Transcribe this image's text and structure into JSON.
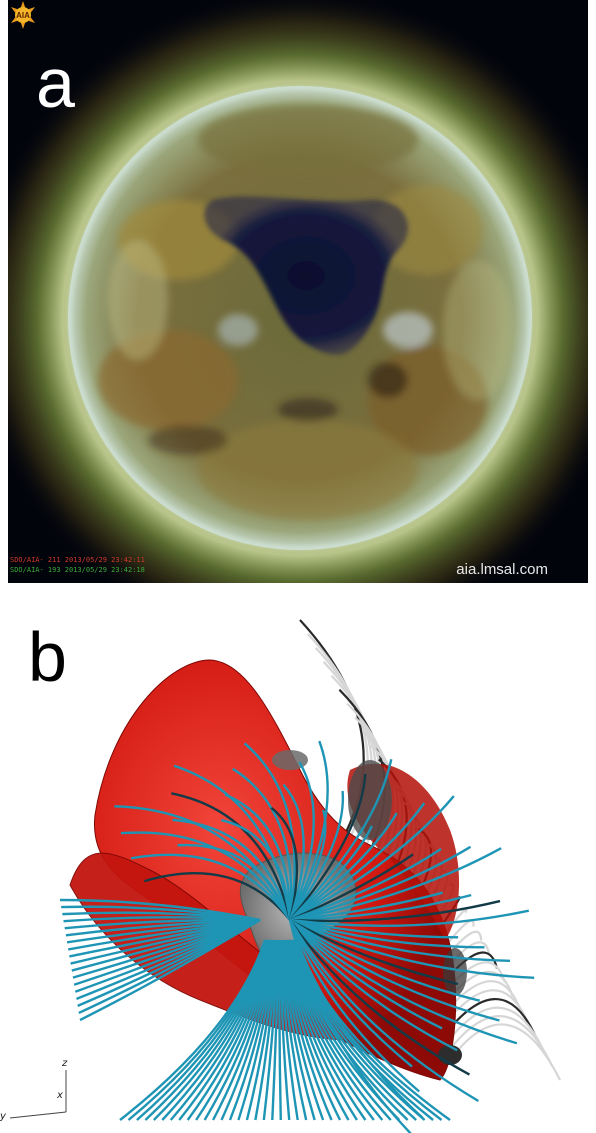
{
  "panels": {
    "a": {
      "label": "a",
      "caption_lines": [
        "SDO/AIA- 211 2013/05/29 23:42:11",
        "SDO/AIA- 193 2013/05/29 23:42:18"
      ],
      "credit": "aia.lmsal.com",
      "logo_text": "AIA"
    },
    "b": {
      "label": "b",
      "axes": {
        "z": "z",
        "x": "x",
        "y": "y"
      }
    }
  },
  "colors": {
    "field_lines_open": "#1f95b5",
    "field_lines_closed": "#d6d6d6",
    "separatrix_surface": "#e2201a",
    "coronal_hole": "#8a8a8a"
  }
}
